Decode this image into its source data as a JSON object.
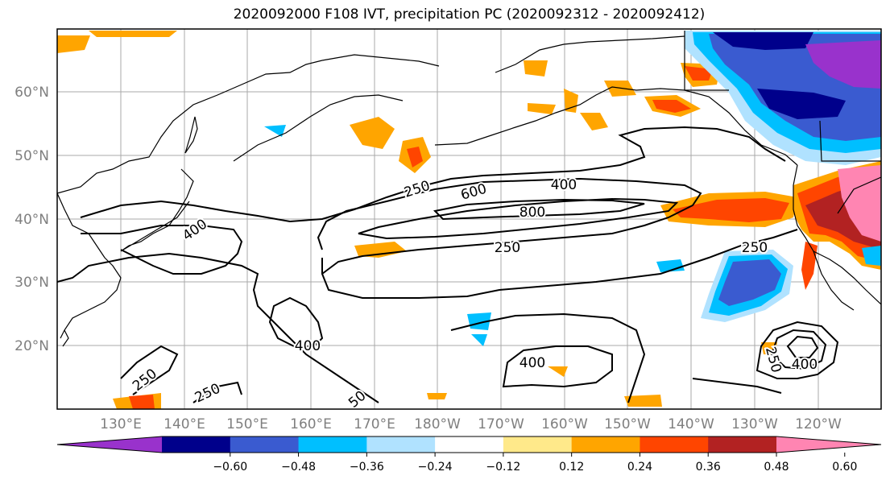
{
  "title": "2020092000 F108 IVT, precipitation PC (2020092312 - 2020092412)",
  "map": {
    "lat_labels": [
      "60°N",
      "50°N",
      "40°N",
      "30°N",
      "20°N"
    ],
    "lon_labels": [
      "130°E",
      "140°E",
      "150°E",
      "160°E",
      "170°E",
      "180°W",
      "170°W",
      "160°W",
      "150°W",
      "140°W",
      "130°W",
      "120°W"
    ],
    "contour_labels": [
      {
        "text": "250",
        "key": "c250a"
      },
      {
        "text": "600",
        "key": "c600"
      },
      {
        "text": "400",
        "key": "c400a"
      },
      {
        "text": "800",
        "key": "c800"
      },
      {
        "text": "400",
        "key": "c400b"
      },
      {
        "text": "250",
        "key": "c250b"
      },
      {
        "text": "250",
        "key": "c250c"
      },
      {
        "text": "400",
        "key": "c400c"
      },
      {
        "text": "250",
        "key": "c250d"
      },
      {
        "text": "250",
        "key": "c250e"
      },
      {
        "text": "50",
        "key": "c50"
      },
      {
        "text": "400",
        "key": "c400d"
      },
      {
        "text": "250",
        "key": "c250f"
      },
      {
        "text": "400",
        "key": "c400e"
      }
    ]
  },
  "colorbar": {
    "colors": [
      "#9932cc",
      "#00008b",
      "#3a5bd0",
      "#00bfff",
      "#b0e2ff",
      "#ffffff",
      "#ffe98a",
      "#ffa500",
      "#ff4500",
      "#b22222",
      "#ff85b2"
    ],
    "ticks": [
      "−0.60",
      "−0.48",
      "−0.36",
      "−0.24",
      "−0.12",
      "0.12",
      "0.24",
      "0.36",
      "0.48",
      "0.60"
    ]
  }
}
